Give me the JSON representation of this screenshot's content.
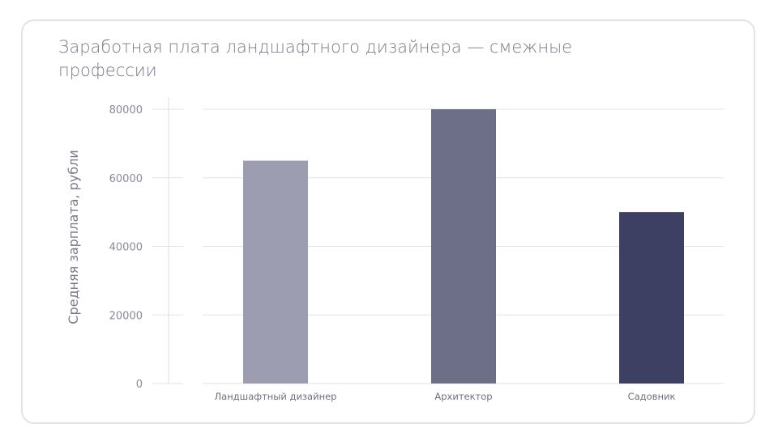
{
  "chart_data": {
    "type": "bar",
    "title": "Заработная плата ландшафтного дизайнера — смежные профессии",
    "xlabel": "",
    "ylabel": "Средняя зарплата, рубли",
    "categories": [
      "Ландшафтный дизайнер",
      "Архитектор",
      "Садовник"
    ],
    "values": [
      65000,
      80000,
      50000
    ],
    "bar_colors": [
      "#9c9db0",
      "#6d6f89",
      "#3e4063"
    ],
    "ylim": [
      0,
      80000
    ],
    "yticks": [
      0,
      20000,
      40000,
      60000,
      80000
    ],
    "ytick_labels": [
      "0",
      "20000",
      "40000",
      "60000",
      "80000"
    ],
    "grid": true,
    "legend": "none"
  }
}
